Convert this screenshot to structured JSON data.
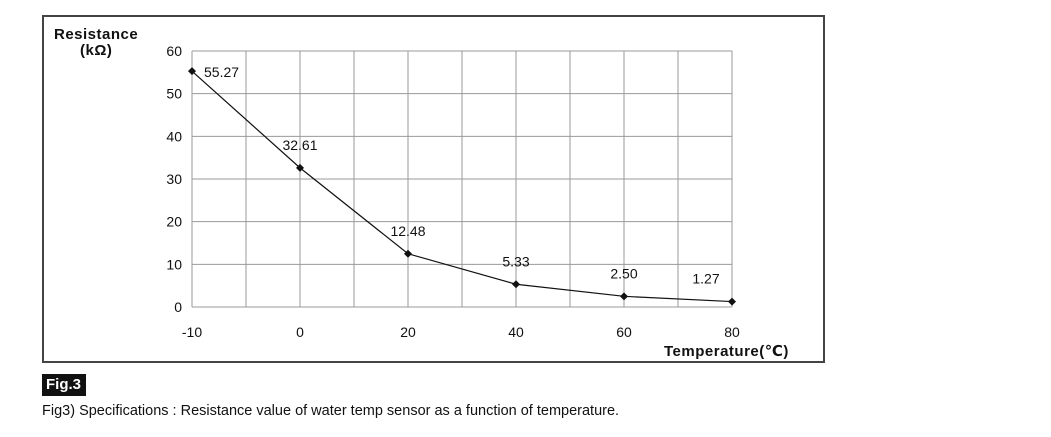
{
  "chart_data": {
    "type": "line",
    "title": "",
    "xlabel": "Temperature(℃)",
    "ylabel_line1": "Resistance",
    "ylabel_line2": "(kΩ)",
    "x_tick_labels": [
      "-10",
      "0",
      "20",
      "40",
      "60",
      "80"
    ],
    "y_ticks": [
      0,
      10,
      20,
      30,
      40,
      50,
      60
    ],
    "ylim": [
      0,
      60
    ],
    "grid": true,
    "series": [
      {
        "name": "Resistance",
        "x": [
          -10,
          0,
          20,
          40,
          60,
          80
        ],
        "values": [
          55.27,
          32.61,
          12.48,
          5.33,
          2.5,
          1.27
        ],
        "labels": [
          "55.27",
          "32.61",
          "12.48",
          "5.33",
          "2.50",
          "1.27"
        ]
      }
    ]
  },
  "figure": {
    "badge": "Fig.3",
    "caption": "Fig3) Specifications : Resistance value of water temp sensor as a function of temperature."
  }
}
